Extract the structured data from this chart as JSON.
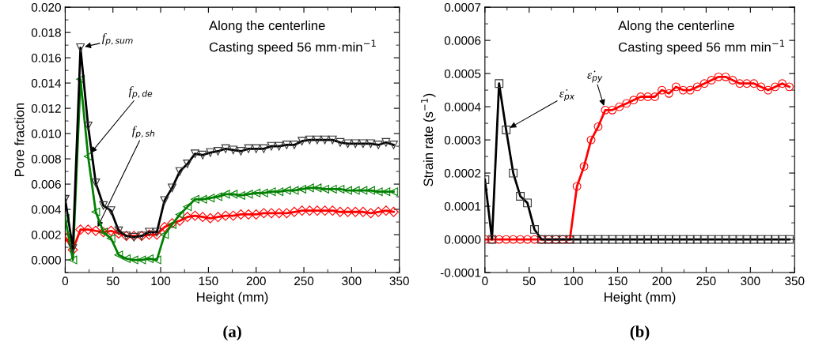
{
  "chart_data": [
    {
      "type": "line",
      "xlabel": "Height (mm)",
      "ylabel": "Pore fraction",
      "annotations": [
        "Along the centerline\nCasting speed 56 mm·min$^{−1}$",
        "(a)"
      ],
      "x": [
        0,
        8,
        16,
        24,
        32,
        40,
        48,
        56,
        64,
        72,
        80,
        88,
        96,
        104,
        112,
        120,
        128,
        136,
        144,
        152,
        160,
        168,
        176,
        184,
        192,
        200,
        208,
        216,
        224,
        232,
        240,
        248,
        256,
        264,
        272,
        280,
        288,
        296,
        304,
        312,
        320,
        328,
        336,
        344
      ],
      "xlim": [
        0,
        350
      ],
      "xticks": [
        0,
        50,
        100,
        150,
        200,
        250,
        300,
        350
      ],
      "ylim": [
        -0.001,
        0.02
      ],
      "yticks": [
        {
          "value": 0,
          "label": "0.000"
        },
        0.002,
        0.004,
        0.006,
        0.008,
        {
          "value": 0.01,
          "label": "0.010"
        },
        0.012,
        0.014,
        0.016,
        0.018,
        {
          "value": 0.02,
          "label": "0.020"
        }
      ],
      "grid": false,
      "series": [
        {
          "name": "f$_{p,sum}$",
          "color": "#000000",
          "marker": "triangle_down",
          "values": [
            0.0048,
            0.0009,
            0.0168,
            0.0106,
            0.0061,
            0.0043,
            0.0039,
            0.0023,
            0.0019,
            0.0018,
            0.0019,
            0.0022,
            0.0022,
            0.0047,
            0.0057,
            0.007,
            0.0076,
            0.0084,
            0.0083,
            0.0085,
            0.0086,
            0.0088,
            0.0087,
            0.0086,
            0.0088,
            0.0088,
            0.0088,
            0.009,
            0.009,
            0.0091,
            0.0091,
            0.0094,
            0.0095,
            0.0095,
            0.0095,
            0.0095,
            0.0093,
            0.0092,
            0.0092,
            0.0092,
            0.0092,
            0.0091,
            0.0093,
            0.0091
          ]
        },
        {
          "name": "f$_{p,de}$",
          "color": "#008000",
          "marker": "triangle_left",
          "values": [
            0.0033,
            0.0,
            0.0143,
            0.0082,
            0.0038,
            0.0022,
            0.0017,
            0.0004,
            0.0001,
            0.0,
            0.0,
            0.0001,
            0.0,
            0.002,
            0.0028,
            0.0036,
            0.0042,
            0.0048,
            0.0048,
            0.0049,
            0.005,
            0.0052,
            0.0052,
            0.0051,
            0.0052,
            0.0053,
            0.0053,
            0.0054,
            0.0054,
            0.0055,
            0.0055,
            0.0056,
            0.0057,
            0.0057,
            0.0056,
            0.0056,
            0.0056,
            0.0055,
            0.0055,
            0.0055,
            0.0055,
            0.0054,
            0.0054,
            0.0054
          ]
        },
        {
          "name": "f$_{p,sh}$",
          "color": "#ff0000",
          "marker": "diamond",
          "values": [
            0.0018,
            0.0008,
            0.0024,
            0.0024,
            0.0023,
            0.0022,
            0.0023,
            0.0021,
            0.0019,
            0.0019,
            0.0019,
            0.002,
            0.002,
            0.0026,
            0.0029,
            0.0031,
            0.0034,
            0.0035,
            0.0034,
            0.0033,
            0.0034,
            0.0035,
            0.0035,
            0.0036,
            0.0036,
            0.0036,
            0.0037,
            0.0037,
            0.0037,
            0.0037,
            0.0038,
            0.0039,
            0.0039,
            0.0039,
            0.0039,
            0.0039,
            0.0038,
            0.0038,
            0.0038,
            0.0038,
            0.0037,
            0.0038,
            0.0039,
            0.0038
          ]
        }
      ]
    },
    {
      "type": "line",
      "xlabel": "Height (mm)",
      "ylabel": "Strain rate (s$^{−1}$)",
      "annotations": [
        "Along the centerline\nCasting speed 56 mm min$^{−1}$",
        "(b)"
      ],
      "x": [
        0,
        8,
        16,
        24,
        32,
        40,
        48,
        56,
        64,
        72,
        80,
        88,
        96,
        104,
        112,
        120,
        128,
        136,
        144,
        152,
        160,
        168,
        176,
        184,
        192,
        200,
        208,
        216,
        224,
        232,
        240,
        248,
        256,
        264,
        272,
        280,
        288,
        296,
        304,
        312,
        320,
        328,
        336,
        344
      ],
      "xlim": [
        0,
        350
      ],
      "xticks": [
        0,
        50,
        100,
        150,
        200,
        250,
        300,
        350
      ],
      "ylim": [
        -0.0001,
        0.0007
      ],
      "yticks": [
        {
          "value": -0.0001,
          "label": "-0.0001"
        },
        {
          "value": 0,
          "label": "0.0000"
        },
        0.0001,
        0.0002,
        0.0003,
        0.0004,
        0.0005,
        0.0006,
        0.0007
      ],
      "grid": false,
      "series": [
        {
          "name": "ε̇$_{px}$",
          "color": "#000000",
          "marker": "square",
          "values": [
            0.00018,
            0.0,
            0.00047,
            0.00033,
            0.0002,
            0.00013,
            0.00011,
            3e-05,
            0,
            0,
            0,
            0,
            0,
            0,
            0,
            0,
            0,
            0,
            0,
            0,
            0,
            0,
            0,
            0,
            0,
            0,
            0,
            0,
            0,
            0,
            0,
            0,
            0,
            0,
            0,
            0,
            0,
            0,
            0,
            0,
            0,
            0,
            0,
            0
          ]
        },
        {
          "name": "ε̇$_{py}$",
          "color": "#ff0000",
          "marker": "circle",
          "values": [
            0,
            0,
            0,
            0,
            0,
            0,
            0,
            0,
            0,
            0,
            0,
            0,
            0,
            0.00016,
            0.00022,
            0.0003,
            0.00034,
            0.00039,
            0.00039,
            0.0004,
            0.00041,
            0.00042,
            0.00043,
            0.00043,
            0.00043,
            0.00045,
            0.00044,
            0.00046,
            0.00045,
            0.00045,
            0.00046,
            0.00047,
            0.00048,
            0.00049,
            0.00049,
            0.00048,
            0.00047,
            0.00047,
            0.00047,
            0.00046,
            0.00045,
            0.00046,
            0.00047,
            0.00046
          ]
        }
      ]
    }
  ]
}
